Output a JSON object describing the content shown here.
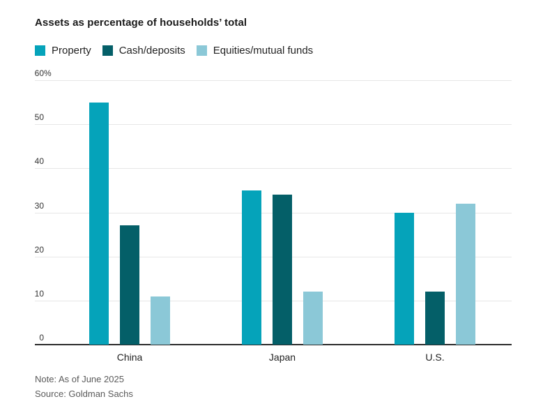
{
  "title": "Assets as percentage of households’ total",
  "note": "Note: As of June 2025",
  "source": "Source: Goldman Sachs",
  "legend": [
    {
      "label": "Property",
      "color": "#05a3ba"
    },
    {
      "label": "Cash/deposits",
      "color": "#045f68"
    },
    {
      "label": "Equities/mutual funds",
      "color": "#8bc8d7"
    }
  ],
  "chart_data": {
    "type": "bar",
    "categories": [
      "China",
      "Japan",
      "U.S."
    ],
    "series": [
      {
        "name": "Property",
        "color": "#05a3ba",
        "values": [
          55,
          35,
          30
        ]
      },
      {
        "name": "Cash/deposits",
        "color": "#045f68",
        "values": [
          27,
          34,
          12
        ]
      },
      {
        "name": "Equities/mutual funds",
        "color": "#8bc8d7",
        "values": [
          11,
          12,
          32
        ]
      }
    ],
    "title": "Assets as percentage of households’ total",
    "xlabel": "",
    "ylabel": "",
    "ylim": [
      0,
      60
    ],
    "yticks": [
      0,
      10,
      20,
      30,
      40,
      50,
      60
    ],
    "ytick_top_suffix": "%",
    "grid": "horizontal",
    "legend_position": "top"
  },
  "colors": {
    "gridline": "#e6e6e6",
    "baseline": "#2b2b2b",
    "title_text": "#1a1a1a",
    "tick_text": "#333333",
    "muted_text": "#5a5a5a"
  }
}
